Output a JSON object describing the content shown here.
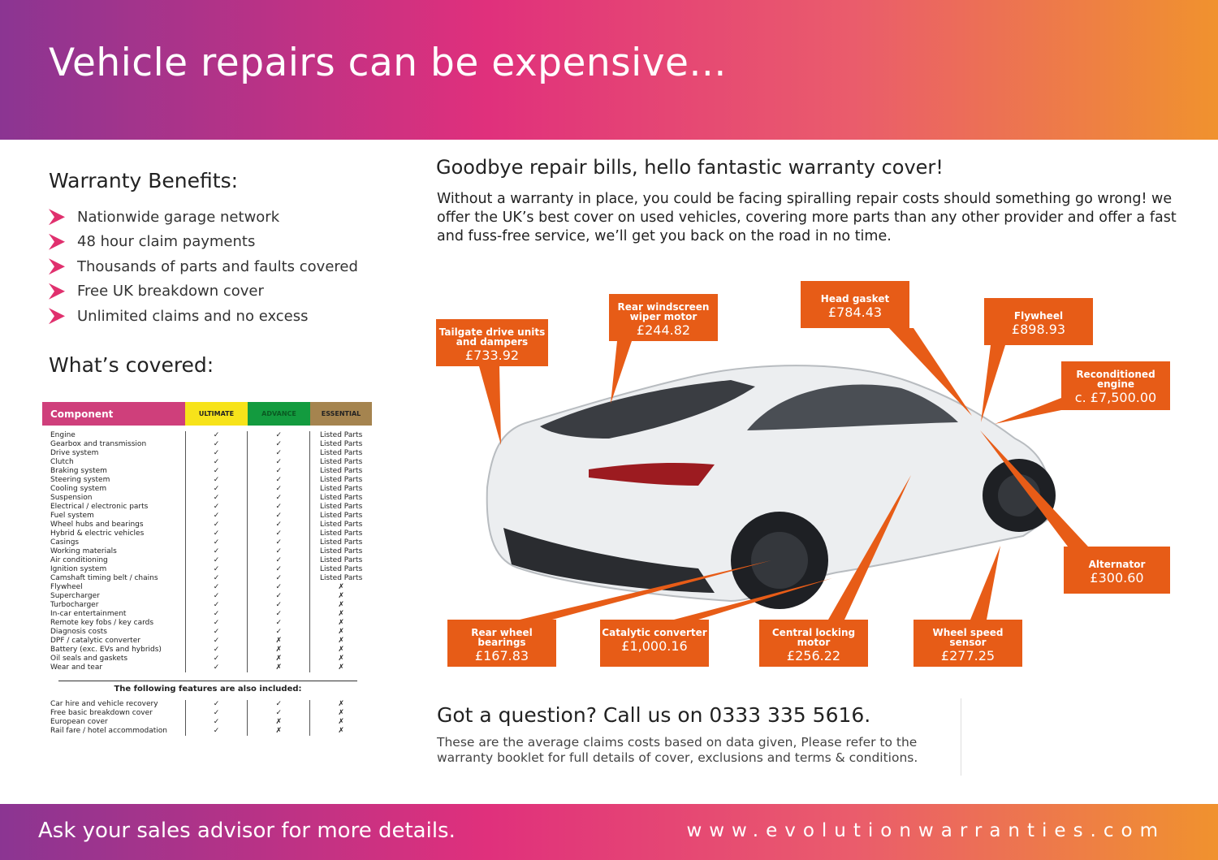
{
  "header": {
    "title": "Vehicle repairs can be expensive..."
  },
  "benefits": {
    "title": "Warranty Benefits:",
    "items": [
      "Nationwide garage network",
      "48 hour claim payments",
      "Thousands of parts and faults covered",
      "Free UK breakdown cover",
      "Unlimited claims and no excess"
    ]
  },
  "covered": {
    "title": "What’s covered:"
  },
  "table": {
    "headers": [
      "Component",
      "ULTIMATE",
      "ADVANCE",
      "ESSENTIAL"
    ],
    "header_colors": [
      "#cf3f7b",
      "#f7e31a",
      "#139b3f",
      "#a5844f"
    ],
    "components": [
      "Engine",
      "Gearbox and transmission",
      "Drive system",
      "Clutch",
      "Braking system",
      "Steering system",
      "Cooling system",
      "Suspension",
      "Electrical / electronic parts",
      "Fuel system",
      "Wheel hubs and bearings",
      "Hybrid & electric vehicles",
      "Casings",
      "Working materials",
      "Air conditioning",
      "Ignition system",
      "Camshaft timing belt / chains",
      "Flywheel",
      "Supercharger",
      "Turbocharger",
      "In-car entertainment",
      "Remote key fobs / key cards",
      "Diagnosis costs",
      "DPF / catalytic converter",
      "Battery (exc. EVs and hybrids)",
      "Oil seals and gaskets",
      "Wear and tear"
    ],
    "ultimate": [
      "✓",
      "✓",
      "✓",
      "✓",
      "✓",
      "✓",
      "✓",
      "✓",
      "✓",
      "✓",
      "✓",
      "✓",
      "✓",
      "✓",
      "✓",
      "✓",
      "✓",
      "✓",
      "✓",
      "✓",
      "✓",
      "✓",
      "✓",
      "✓",
      "✓",
      "✓",
      "✓"
    ],
    "advance": [
      "✓",
      "✓",
      "✓",
      "✓",
      "✓",
      "✓",
      "✓",
      "✓",
      "✓",
      "✓",
      "✓",
      "✓",
      "✓",
      "✓",
      "✓",
      "✓",
      "✓",
      "✓",
      "✓",
      "✓",
      "✓",
      "✓",
      "✓",
      "✗",
      "✗",
      "✗",
      "✗"
    ],
    "essential": [
      "Listed Parts",
      "Listed Parts",
      "Listed Parts",
      "Listed Parts",
      "Listed Parts",
      "Listed Parts",
      "Listed Parts",
      "Listed Parts",
      "Listed Parts",
      "Listed Parts",
      "Listed Parts",
      "Listed Parts",
      "Listed Parts",
      "Listed Parts",
      "Listed Parts",
      "Listed Parts",
      "Listed Parts",
      "✗",
      "✗",
      "✗",
      "✗",
      "✗",
      "✗",
      "✗",
      "✗",
      "✗",
      "✗"
    ],
    "also_title": "The following features are also included:",
    "features": [
      "Car hire and vehicle recovery",
      "Free basic breakdown cover",
      "European cover",
      "Rail fare / hotel accommodation"
    ],
    "f_ultimate": [
      "✓",
      "✓",
      "✓",
      "✓"
    ],
    "f_advance": [
      "✓",
      "✓",
      "✗",
      "✗"
    ],
    "f_essential": [
      "✗",
      "✗",
      "✗",
      "✗"
    ]
  },
  "main": {
    "title": "Goodbye repair bills, hello fantastic warranty cover!",
    "intro": "Without a warranty in place, you could be facing spiralling repair costs should something go wrong! we offer the UK’s best cover on used vehicles, covering more parts than any other provider and offer a fast and fuss-free service, we’ll get you back on the road in no time."
  },
  "callouts": [
    {
      "label": "Tailgate drive units and dampers",
      "price": "£733.92"
    },
    {
      "label": "Rear windscreen wiper motor",
      "price": "£244.82"
    },
    {
      "label": "Head gasket",
      "price": "£784.43"
    },
    {
      "label": "Flywheel",
      "price": "£898.93"
    },
    {
      "label": "Reconditioned engine",
      "price": "c. £7,500.00"
    },
    {
      "label": "Alternator",
      "price": "£300.60"
    },
    {
      "label": "Rear wheel bearings",
      "price": "£167.83"
    },
    {
      "label": "Catalytic converter",
      "price": "£1,000.16"
    },
    {
      "label": "Central locking motor",
      "price": "£256.22"
    },
    {
      "label": "Wheel speed sensor",
      "price": "£277.25"
    }
  ],
  "colors": {
    "callout": "#e75c17",
    "accent": "#e0306e"
  },
  "contact": {
    "question": "Got a question? Call us on 0333 335 5616.",
    "note": "These are the average claims costs based on data given, Please refer to the warranty booklet for full details of cover, exclusions and terms & conditions."
  },
  "footer": {
    "left": "Ask your sales advisor for more details.",
    "right": "www.evolutionwarranties.com"
  }
}
